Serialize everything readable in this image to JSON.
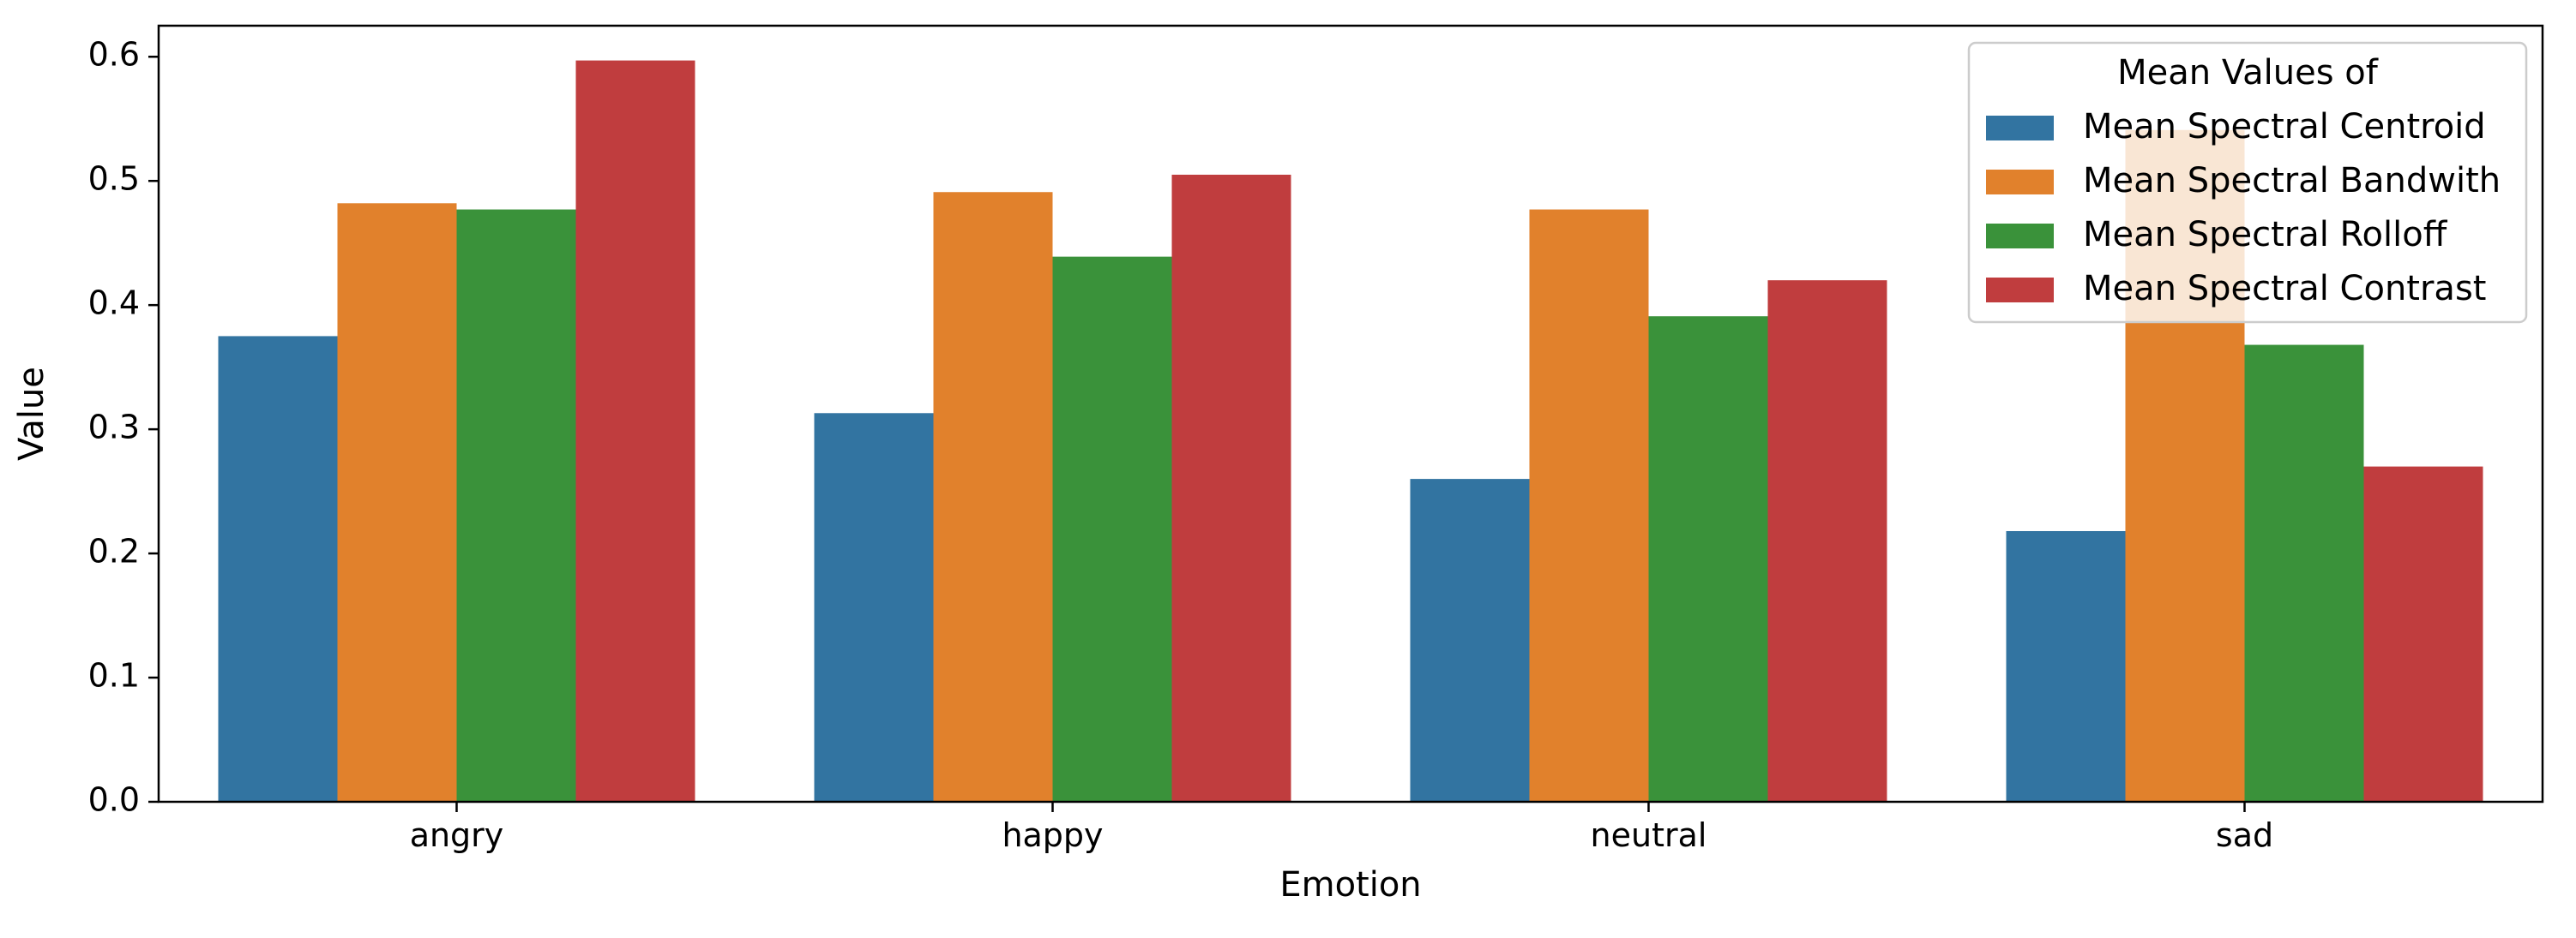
{
  "chart_data": {
    "type": "bar",
    "title": "",
    "xlabel": "Emotion",
    "ylabel": "Value",
    "categories": [
      "angry",
      "happy",
      "neutral",
      "sad"
    ],
    "ylim": [
      0,
      0.625
    ],
    "yticks": [
      "0.0",
      "0.1",
      "0.2",
      "0.3",
      "0.4",
      "0.5",
      "0.6"
    ],
    "grid": false,
    "legend": {
      "title": "Mean Values of",
      "placement": "top-right"
    },
    "series": [
      {
        "name": "Mean Spectral Centroid",
        "color": "#3274a1",
        "values": [
          0.375,
          0.313,
          0.26,
          0.218
        ]
      },
      {
        "name": "Mean Spectral Bandwith",
        "color": "#e1812c",
        "values": [
          0.482,
          0.491,
          0.477,
          0.541
        ]
      },
      {
        "name": "Mean Spectral Rolloff",
        "color": "#3a923a",
        "values": [
          0.477,
          0.439,
          0.391,
          0.368
        ]
      },
      {
        "name": "Mean Spectral Contrast",
        "color": "#c03d3e",
        "values": [
          0.597,
          0.505,
          0.42,
          0.27
        ]
      }
    ]
  }
}
